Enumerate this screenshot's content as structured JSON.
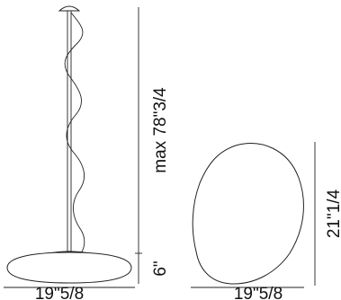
{
  "side_view": {
    "height_label": "max 78\"3/4",
    "shade_height_label": "6\"",
    "width_label": "19\"5/8"
  },
  "top_view": {
    "depth_label": "21\"1/4",
    "width_label": "19\"5/8"
  }
}
